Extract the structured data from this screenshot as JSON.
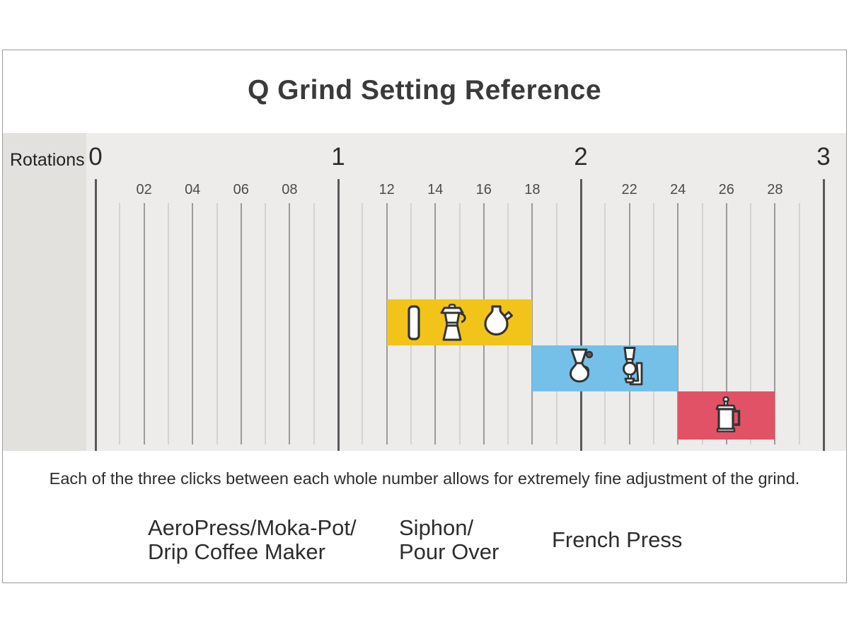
{
  "title": "Q Grind Setting Reference",
  "axis": {
    "label": "Rotations",
    "whole_ticks": [
      {
        "label": "0",
        "value": 0
      },
      {
        "label": "1",
        "value": 10
      },
      {
        "label": "2",
        "value": 20
      },
      {
        "label": "3",
        "value": 30
      }
    ],
    "minor_ticks": [
      {
        "label": "02",
        "value": 2
      },
      {
        "label": "04",
        "value": 4
      },
      {
        "label": "06",
        "value": 6
      },
      {
        "label": "08",
        "value": 8
      },
      {
        "label": "12",
        "value": 12
      },
      {
        "label": "14",
        "value": 14
      },
      {
        "label": "16",
        "value": 16
      },
      {
        "label": "18",
        "value": 18
      },
      {
        "label": "22",
        "value": 22
      },
      {
        "label": "24",
        "value": 24
      },
      {
        "label": "26",
        "value": 26
      },
      {
        "label": "28",
        "value": 28
      }
    ],
    "min_value": 0,
    "max_value": 30
  },
  "chart_data": {
    "type": "bar",
    "orientation": "horizontal-range",
    "title": "Q Grind Setting Reference",
    "xlabel": "Rotations",
    "x_range_rotations": [
      0,
      3
    ],
    "units": "grind setting numbers (10 per rotation)",
    "grid": "vertical ticks at every setting, labels on even settings",
    "series": [
      {
        "name": "AeroPress/Moka-Pot/Drip Coffee Maker",
        "from": 12,
        "to": 18,
        "from_rotations": 1.2,
        "to_rotations": 1.8,
        "color": "#F2C41A",
        "icons": [
          "aeropress-icon",
          "moka-pot-icon",
          "drip-coffee-maker-icon"
        ]
      },
      {
        "name": "Siphon/Pour Over",
        "from": 18,
        "to": 24,
        "from_rotations": 1.8,
        "to_rotations": 2.4,
        "color": "#74C0E8",
        "icons": [
          "pour-over-icon",
          "siphon-icon"
        ]
      },
      {
        "name": "French Press",
        "from": 24,
        "to": 28,
        "from_rotations": 2.4,
        "to_rotations": 2.8,
        "color": "#E15266",
        "icons": [
          "french-press-icon"
        ]
      }
    ],
    "legend_position": "bottom"
  },
  "note": "Each of the three clicks between each whole number allows for extremely fine adjustment of the grind.",
  "legend": [
    {
      "lines": [
        "AeroPress/Moka-Pot/",
        "Drip Coffee Maker"
      ],
      "color": "#F2C41A"
    },
    {
      "lines": [
        "Siphon/",
        "Pour Over"
      ],
      "color": "#74C0E8"
    },
    {
      "lines": [
        "French Press"
      ],
      "color": "#E15266"
    }
  ],
  "colors": {
    "band_background": "#EDECEB",
    "rotations_box": "#E3E1DE",
    "frame_border": "#9A9A9A",
    "tick_whole": "#58595B",
    "tick_even": "#9B9B9B",
    "tick_odd": "#D5D3D1",
    "text": "#2D2D2D"
  }
}
